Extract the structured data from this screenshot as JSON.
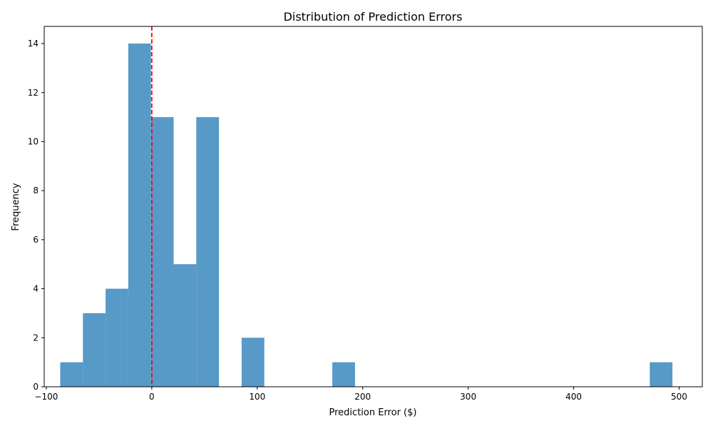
{
  "chart_data": {
    "type": "bar",
    "title": "Distribution of Prediction Errors",
    "xlabel": "Prediction Error ($)",
    "ylabel": "Frequency",
    "xlim": [
      -102,
      522
    ],
    "ylim": [
      0,
      14.7
    ],
    "xticks": [
      -100,
      0,
      100,
      200,
      300,
      400,
      500
    ],
    "yticks": [
      0,
      2,
      4,
      6,
      8,
      10,
      12,
      14
    ],
    "bins": [
      {
        "x0": -86.8,
        "x1": -65.3,
        "count": 1
      },
      {
        "x0": -65.3,
        "x1": -43.8,
        "count": 3
      },
      {
        "x0": -43.8,
        "x1": -22.3,
        "count": 4
      },
      {
        "x0": -22.3,
        "x1": -0.8,
        "count": 14
      },
      {
        "x0": -0.8,
        "x1": 20.7,
        "count": 11
      },
      {
        "x0": 20.7,
        "x1": 42.2,
        "count": 5
      },
      {
        "x0": 42.2,
        "x1": 63.7,
        "count": 11
      },
      {
        "x0": 63.7,
        "x1": 85.2,
        "count": 0
      },
      {
        "x0": 85.2,
        "x1": 106.7,
        "count": 2
      },
      {
        "x0": 106.7,
        "x1": 128.2,
        "count": 0
      },
      {
        "x0": 128.2,
        "x1": 149.7,
        "count": 0
      },
      {
        "x0": 149.7,
        "x1": 171.2,
        "count": 0
      },
      {
        "x0": 171.2,
        "x1": 192.7,
        "count": 1
      },
      {
        "x0": 192.7,
        "x1": 214.2,
        "count": 0
      },
      {
        "x0": 214.2,
        "x1": 235.7,
        "count": 0
      },
      {
        "x0": 235.7,
        "x1": 257.2,
        "count": 0
      },
      {
        "x0": 257.2,
        "x1": 278.7,
        "count": 0
      },
      {
        "x0": 278.7,
        "x1": 300.2,
        "count": 0
      },
      {
        "x0": 300.2,
        "x1": 321.7,
        "count": 0
      },
      {
        "x0": 321.7,
        "x1": 343.2,
        "count": 0
      },
      {
        "x0": 343.2,
        "x1": 364.7,
        "count": 0
      },
      {
        "x0": 364.7,
        "x1": 386.2,
        "count": 0
      },
      {
        "x0": 386.2,
        "x1": 407.7,
        "count": 0
      },
      {
        "x0": 407.7,
        "x1": 429.2,
        "count": 0
      },
      {
        "x0": 429.2,
        "x1": 450.7,
        "count": 0
      },
      {
        "x0": 450.7,
        "x1": 472.2,
        "count": 0
      },
      {
        "x0": 472.2,
        "x1": 493.7,
        "count": 1
      }
    ],
    "reference_line": {
      "x": 0,
      "style": "dashed"
    },
    "grid": false,
    "legend": "none",
    "colors": {
      "bar": "#5799c7",
      "reference_line": "#ff0000"
    }
  }
}
